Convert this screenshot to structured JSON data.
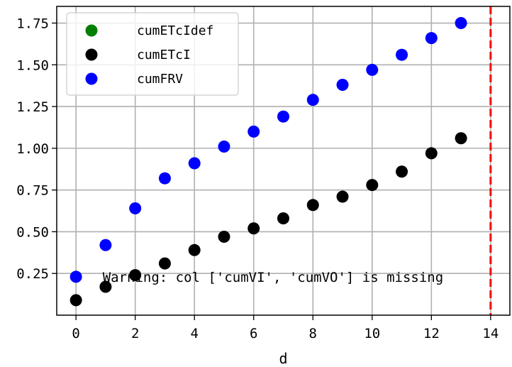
{
  "chart_data": {
    "type": "scatter",
    "title": "",
    "xlabel": "d",
    "ylabel": "",
    "xlim": [
      -0.65,
      14.65
    ],
    "ylim": [
      0.0,
      1.85
    ],
    "xticks": [
      0,
      2,
      4,
      6,
      8,
      10,
      12,
      14
    ],
    "xtick_labels": [
      "0",
      "2",
      "4",
      "6",
      "8",
      "10",
      "12",
      "14"
    ],
    "yticks": [
      0.25,
      0.5,
      0.75,
      1.0,
      1.25,
      1.5,
      1.75
    ],
    "ytick_labels": [
      "0.25",
      "0.50",
      "0.75",
      "1.00",
      "1.25",
      "1.50",
      "1.75"
    ],
    "grid": true,
    "legend_position": "upper-left",
    "series": [
      {
        "name": "cumETcIdef",
        "color": "#008000",
        "x": [],
        "y": []
      },
      {
        "name": "cumETcI",
        "color": "#000000",
        "x": [
          0,
          1,
          2,
          3,
          4,
          5,
          6,
          7,
          8,
          9,
          10,
          11,
          12,
          13
        ],
        "y": [
          0.09,
          0.17,
          0.24,
          0.31,
          0.39,
          0.47,
          0.52,
          0.58,
          0.66,
          0.71,
          0.78,
          0.86,
          0.97,
          1.06
        ]
      },
      {
        "name": "cumFRV",
        "color": "#0000ff",
        "x": [
          0,
          1,
          2,
          3,
          4,
          5,
          6,
          7,
          8,
          9,
          10,
          11,
          12,
          13
        ],
        "y": [
          0.23,
          0.42,
          0.64,
          0.82,
          0.91,
          1.01,
          1.1,
          1.19,
          1.29,
          1.38,
          1.47,
          1.56,
          1.66,
          1.75
        ]
      }
    ],
    "reference_line": {
      "x": 14,
      "color": "#ff0000",
      "style": "dashed"
    },
    "annotation": {
      "text": "Warning: col ['cumVI', 'cumVO'] is missing",
      "x": 0.9,
      "y": 0.23
    }
  }
}
